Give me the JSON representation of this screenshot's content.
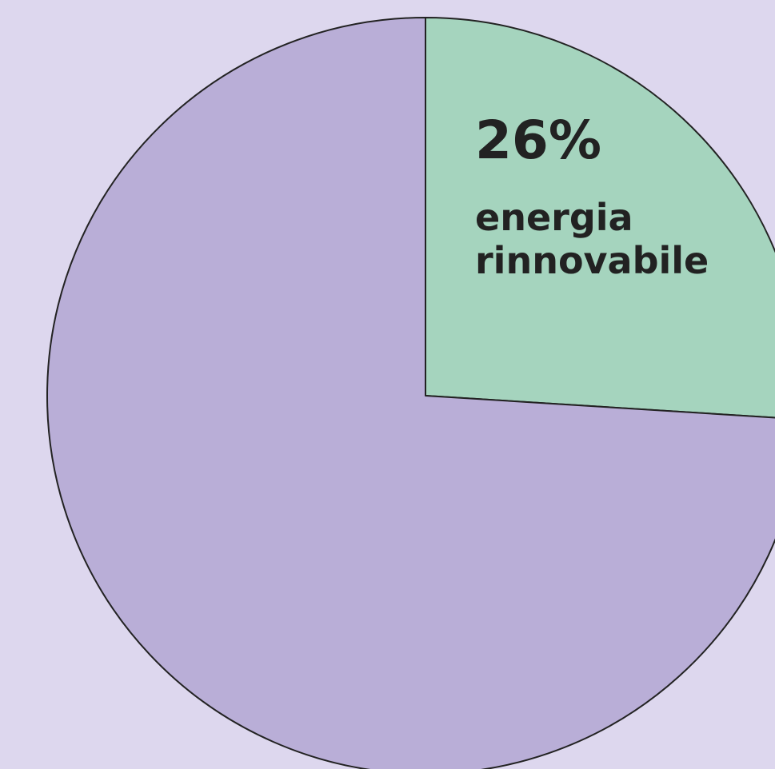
{
  "colors": {
    "background": "#ddd7ee",
    "renewable_slice": "#a5d4be",
    "other_slice": "#b9aed7",
    "stroke": "#222222",
    "text": "#222222"
  },
  "chart_data": {
    "type": "pie",
    "slices": [
      {
        "key": "renewable",
        "value": 26,
        "percent_label": "26%",
        "label_lines": [
          "energia",
          "rinnovabile"
        ],
        "color": "#a5d4be"
      },
      {
        "key": "other",
        "value": 74,
        "color": "#b9aed7"
      }
    ],
    "title": "",
    "legend": "none"
  }
}
